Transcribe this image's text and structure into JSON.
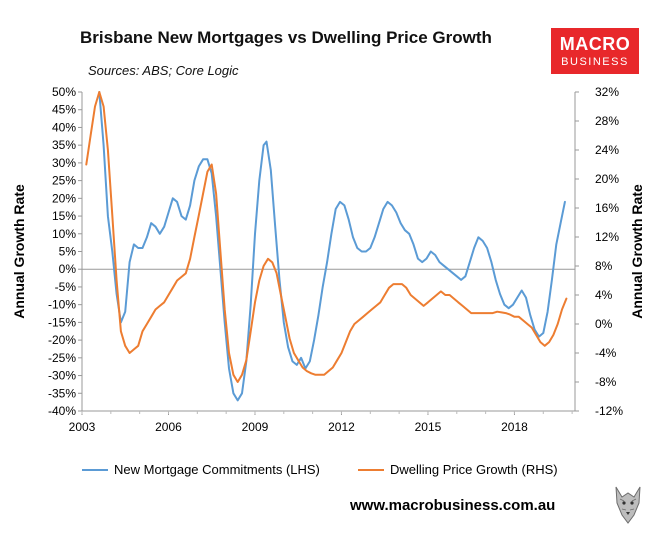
{
  "title": "Brisbane New Mortgages vs Dwelling Price Growth",
  "subtitle": "Sources: ABS; Core Logic",
  "logo": {
    "line1": "MACRO",
    "line2": "BUSINESS",
    "color": "#e8282b"
  },
  "footer_url": "www.macrobusiness.com.au",
  "footer_icon": "wolf-icon",
  "chart_data": {
    "type": "line",
    "grid": false,
    "legend_position": "bottom",
    "xlim": [
      2003,
      2020.1
    ],
    "x_ticks": [
      2003,
      2006,
      2009,
      2012,
      2015,
      2018
    ],
    "x_tick_labels": [
      "2003",
      "2006",
      "2009",
      "2012",
      "2015",
      "2018"
    ],
    "y_left": {
      "label": "Annual Growth Rate",
      "lim": [
        -40,
        50
      ],
      "ticks": [
        -40,
        -35,
        -30,
        -25,
        -20,
        -15,
        -10,
        -5,
        0,
        5,
        10,
        15,
        20,
        25,
        30,
        35,
        40,
        45,
        50
      ],
      "tick_labels": [
        "-40%",
        "-35%",
        "-30%",
        "-25%",
        "-20%",
        "-15%",
        "-10%",
        "-5%",
        "0%",
        "5%",
        "10%",
        "15%",
        "20%",
        "25%",
        "30%",
        "35%",
        "40%",
        "45%",
        "50%"
      ]
    },
    "y_right": {
      "label": "Annual Growth Rate",
      "lim": [
        -12,
        32
      ],
      "ticks": [
        -12,
        -8,
        -4,
        0,
        4,
        8,
        12,
        16,
        20,
        24,
        28,
        32
      ],
      "tick_labels": [
        "-12%",
        "-8%",
        "-4%",
        "0%",
        "4%",
        "8%",
        "12%",
        "16%",
        "20%",
        "24%",
        "28%",
        "32%"
      ]
    },
    "series": [
      {
        "name": "New Mortgage Commitments (LHS)",
        "axis": "left",
        "color": "#5b9bd5",
        "points": [
          [
            2003.6,
            50
          ],
          [
            2003.75,
            35
          ],
          [
            2003.9,
            15
          ],
          [
            2004.05,
            5
          ],
          [
            2004.2,
            -7
          ],
          [
            2004.35,
            -15
          ],
          [
            2004.5,
            -12
          ],
          [
            2004.65,
            2
          ],
          [
            2004.8,
            7
          ],
          [
            2004.95,
            6
          ],
          [
            2005.1,
            6
          ],
          [
            2005.25,
            9
          ],
          [
            2005.4,
            13
          ],
          [
            2005.55,
            12
          ],
          [
            2005.7,
            10
          ],
          [
            2005.85,
            12
          ],
          [
            2006.0,
            16
          ],
          [
            2006.15,
            20
          ],
          [
            2006.3,
            19
          ],
          [
            2006.45,
            15
          ],
          [
            2006.6,
            14
          ],
          [
            2006.75,
            18
          ],
          [
            2006.9,
            25
          ],
          [
            2007.05,
            29
          ],
          [
            2007.2,
            31
          ],
          [
            2007.35,
            31
          ],
          [
            2007.5,
            27
          ],
          [
            2007.65,
            15
          ],
          [
            2007.8,
            0
          ],
          [
            2007.95,
            -15
          ],
          [
            2008.1,
            -28
          ],
          [
            2008.25,
            -35
          ],
          [
            2008.4,
            -37
          ],
          [
            2008.55,
            -35
          ],
          [
            2008.7,
            -26
          ],
          [
            2008.85,
            -10
          ],
          [
            2009.0,
            10
          ],
          [
            2009.15,
            25
          ],
          [
            2009.3,
            35
          ],
          [
            2009.4,
            36
          ],
          [
            2009.55,
            28
          ],
          [
            2009.7,
            12
          ],
          [
            2009.85,
            -3
          ],
          [
            2010.0,
            -15
          ],
          [
            2010.15,
            -22
          ],
          [
            2010.3,
            -26
          ],
          [
            2010.45,
            -27
          ],
          [
            2010.6,
            -25
          ],
          [
            2010.75,
            -28
          ],
          [
            2010.9,
            -26
          ],
          [
            2011.05,
            -20
          ],
          [
            2011.2,
            -13
          ],
          [
            2011.35,
            -5
          ],
          [
            2011.5,
            2
          ],
          [
            2011.65,
            10
          ],
          [
            2011.8,
            17
          ],
          [
            2011.95,
            19
          ],
          [
            2012.1,
            18
          ],
          [
            2012.25,
            14
          ],
          [
            2012.4,
            9
          ],
          [
            2012.55,
            6
          ],
          [
            2012.7,
            5
          ],
          [
            2012.85,
            5
          ],
          [
            2013.0,
            6
          ],
          [
            2013.15,
            9
          ],
          [
            2013.3,
            13
          ],
          [
            2013.45,
            17
          ],
          [
            2013.6,
            19
          ],
          [
            2013.75,
            18
          ],
          [
            2013.9,
            16
          ],
          [
            2014.05,
            13
          ],
          [
            2014.2,
            11
          ],
          [
            2014.35,
            10
          ],
          [
            2014.5,
            7
          ],
          [
            2014.65,
            3
          ],
          [
            2014.8,
            2
          ],
          [
            2014.95,
            3
          ],
          [
            2015.1,
            5
          ],
          [
            2015.25,
            4
          ],
          [
            2015.4,
            2
          ],
          [
            2015.55,
            1
          ],
          [
            2015.7,
            0
          ],
          [
            2015.85,
            -1
          ],
          [
            2016.0,
            -2
          ],
          [
            2016.15,
            -3
          ],
          [
            2016.3,
            -2
          ],
          [
            2016.45,
            2
          ],
          [
            2016.6,
            6
          ],
          [
            2016.75,
            9
          ],
          [
            2016.9,
            8
          ],
          [
            2017.05,
            6
          ],
          [
            2017.2,
            2
          ],
          [
            2017.35,
            -3
          ],
          [
            2017.5,
            -7
          ],
          [
            2017.65,
            -10
          ],
          [
            2017.8,
            -11
          ],
          [
            2017.95,
            -10
          ],
          [
            2018.1,
            -8
          ],
          [
            2018.25,
            -6
          ],
          [
            2018.4,
            -8
          ],
          [
            2018.55,
            -13
          ],
          [
            2018.7,
            -17
          ],
          [
            2018.85,
            -19
          ],
          [
            2019.0,
            -18
          ],
          [
            2019.15,
            -12
          ],
          [
            2019.3,
            -3
          ],
          [
            2019.45,
            7
          ],
          [
            2019.6,
            13
          ],
          [
            2019.75,
            19
          ]
        ]
      },
      {
        "name": "Dwelling Price Growth (RHS)",
        "axis": "right",
        "color": "#ed7d31",
        "points": [
          [
            2003.15,
            22
          ],
          [
            2003.3,
            26
          ],
          [
            2003.45,
            30
          ],
          [
            2003.6,
            32
          ],
          [
            2003.75,
            30
          ],
          [
            2003.9,
            24
          ],
          [
            2004.05,
            15
          ],
          [
            2004.2,
            6
          ],
          [
            2004.35,
            -1
          ],
          [
            2004.5,
            -3
          ],
          [
            2004.65,
            -4
          ],
          [
            2004.8,
            -3.5
          ],
          [
            2004.95,
            -3
          ],
          [
            2005.1,
            -1
          ],
          [
            2005.25,
            0
          ],
          [
            2005.4,
            1
          ],
          [
            2005.55,
            2
          ],
          [
            2005.7,
            2.5
          ],
          [
            2005.85,
            3
          ],
          [
            2006.0,
            4
          ],
          [
            2006.15,
            5
          ],
          [
            2006.3,
            6
          ],
          [
            2006.45,
            6.5
          ],
          [
            2006.6,
            7
          ],
          [
            2006.75,
            9
          ],
          [
            2006.9,
            12
          ],
          [
            2007.05,
            15
          ],
          [
            2007.2,
            18
          ],
          [
            2007.35,
            21
          ],
          [
            2007.5,
            22
          ],
          [
            2007.65,
            18
          ],
          [
            2007.8,
            10
          ],
          [
            2007.95,
            2
          ],
          [
            2008.1,
            -4
          ],
          [
            2008.25,
            -7
          ],
          [
            2008.4,
            -8
          ],
          [
            2008.55,
            -7
          ],
          [
            2008.7,
            -5
          ],
          [
            2008.85,
            -1
          ],
          [
            2009.0,
            3
          ],
          [
            2009.15,
            6
          ],
          [
            2009.3,
            8
          ],
          [
            2009.45,
            9
          ],
          [
            2009.6,
            8.5
          ],
          [
            2009.75,
            7
          ],
          [
            2009.9,
            4
          ],
          [
            2010.05,
            1
          ],
          [
            2010.2,
            -2
          ],
          [
            2010.35,
            -4
          ],
          [
            2010.5,
            -5
          ],
          [
            2010.65,
            -6
          ],
          [
            2010.8,
            -6.5
          ],
          [
            2010.95,
            -6.8
          ],
          [
            2011.1,
            -7
          ],
          [
            2011.25,
            -7
          ],
          [
            2011.4,
            -7
          ],
          [
            2011.55,
            -6.5
          ],
          [
            2011.7,
            -6
          ],
          [
            2011.85,
            -5
          ],
          [
            2012.0,
            -4
          ],
          [
            2012.15,
            -2.5
          ],
          [
            2012.3,
            -1
          ],
          [
            2012.45,
            0
          ],
          [
            2012.6,
            0.5
          ],
          [
            2012.75,
            1
          ],
          [
            2012.9,
            1.5
          ],
          [
            2013.05,
            2
          ],
          [
            2013.2,
            2.5
          ],
          [
            2013.35,
            3
          ],
          [
            2013.5,
            4
          ],
          [
            2013.65,
            5
          ],
          [
            2013.8,
            5.5
          ],
          [
            2013.95,
            5.5
          ],
          [
            2014.1,
            5.5
          ],
          [
            2014.25,
            5
          ],
          [
            2014.4,
            4
          ],
          [
            2014.55,
            3.5
          ],
          [
            2014.7,
            3
          ],
          [
            2014.85,
            2.5
          ],
          [
            2015.0,
            3
          ],
          [
            2015.15,
            3.5
          ],
          [
            2015.3,
            4
          ],
          [
            2015.45,
            4.5
          ],
          [
            2015.6,
            4
          ],
          [
            2015.75,
            4
          ],
          [
            2015.9,
            3.5
          ],
          [
            2016.05,
            3
          ],
          [
            2016.2,
            2.5
          ],
          [
            2016.35,
            2
          ],
          [
            2016.5,
            1.5
          ],
          [
            2016.65,
            1.5
          ],
          [
            2016.8,
            1.5
          ],
          [
            2016.95,
            1.5
          ],
          [
            2017.1,
            1.5
          ],
          [
            2017.25,
            1.5
          ],
          [
            2017.4,
            1.7
          ],
          [
            2017.55,
            1.6
          ],
          [
            2017.7,
            1.5
          ],
          [
            2017.85,
            1.3
          ],
          [
            2018.0,
            1
          ],
          [
            2018.15,
            1
          ],
          [
            2018.3,
            0.5
          ],
          [
            2018.45,
            0
          ],
          [
            2018.6,
            -0.5
          ],
          [
            2018.75,
            -1.5
          ],
          [
            2018.9,
            -2.5
          ],
          [
            2019.05,
            -3
          ],
          [
            2019.2,
            -2.5
          ],
          [
            2019.35,
            -1.5
          ],
          [
            2019.5,
            0
          ],
          [
            2019.65,
            2
          ],
          [
            2019.8,
            3.5
          ]
        ]
      }
    ]
  }
}
